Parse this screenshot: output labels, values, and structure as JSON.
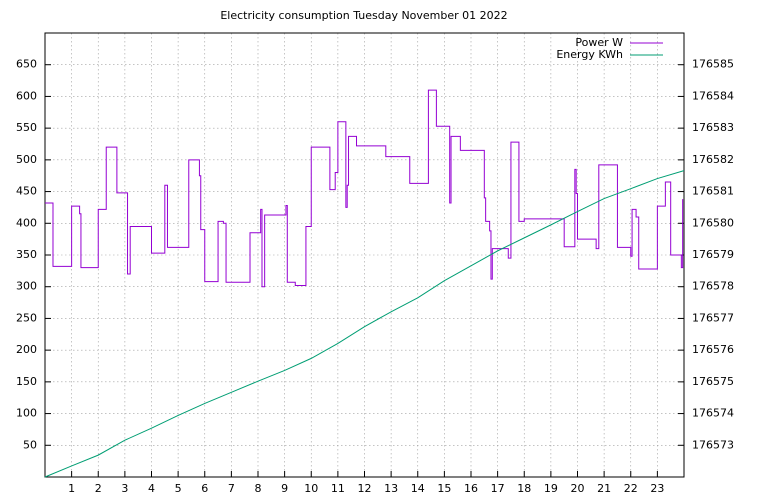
{
  "chart_data": {
    "type": "line",
    "step": "post",
    "title": "Electricity consumption Tuesday November 01 2022",
    "xlim": [
      0,
      24
    ],
    "xticks": [
      1,
      2,
      3,
      4,
      5,
      6,
      7,
      8,
      9,
      10,
      11,
      12,
      13,
      14,
      15,
      16,
      17,
      18,
      19,
      20,
      21,
      22,
      23
    ],
    "ylim": [
      0,
      700
    ],
    "yticks": [
      50,
      100,
      150,
      200,
      250,
      300,
      350,
      400,
      450,
      500,
      550,
      600,
      650
    ],
    "y2lim": [
      176572,
      176586
    ],
    "y2ticks": [
      176573,
      176574,
      176575,
      176576,
      176577,
      176578,
      176579,
      176580,
      176581,
      176582,
      176583,
      176584,
      176585
    ],
    "grid": true,
    "legend": "top-right",
    "series": [
      {
        "name": "Power W",
        "color": "#9400d3",
        "x": [
          0,
          0.3,
          1.0,
          1.3,
          1.35,
          2.0,
          2.3,
          2.7,
          3.1,
          3.2,
          4.0,
          4.5,
          4.6,
          5.4,
          5.8,
          5.85,
          6.0,
          6.5,
          6.7,
          6.8,
          7.7,
          8.1,
          8.15,
          8.25,
          9.05,
          9.1,
          9.4,
          9.8,
          10.0,
          10.7,
          10.9,
          11.0,
          11.3,
          11.35,
          11.4,
          11.7,
          12.8,
          13.7,
          14.4,
          14.7,
          15.2,
          15.25,
          15.6,
          16.5,
          16.55,
          16.7,
          16.75,
          16.8,
          17.4,
          17.5,
          17.8,
          18.0,
          19.5,
          19.9,
          19.95,
          20.0,
          20.7,
          20.8,
          21.5,
          22.0,
          22.05,
          22.2,
          22.3,
          23.0,
          23.3,
          23.5,
          23.9,
          23.95
        ],
        "values": [
          432,
          332,
          427,
          415,
          330,
          422,
          520,
          448,
          320,
          395,
          353,
          460,
          362,
          500,
          475,
          390,
          308,
          403,
          400,
          307,
          385,
          422,
          300,
          413,
          428,
          307,
          302,
          395,
          520,
          453,
          480,
          560,
          425,
          460,
          537,
          522,
          505,
          463,
          610,
          553,
          432,
          537,
          515,
          440,
          403,
          388,
          312,
          360,
          345,
          528,
          403,
          407,
          363,
          485,
          447,
          375,
          360,
          492,
          362,
          348,
          422,
          410,
          328,
          427,
          465,
          350,
          330,
          438
        ]
      },
      {
        "name": "Energy KWh",
        "color": "#009e73",
        "axis": "y2",
        "x": [
          0,
          1,
          2,
          3,
          4,
          5,
          6,
          7,
          8,
          9,
          10,
          11,
          12,
          13,
          14,
          15,
          16,
          17,
          18,
          19,
          20,
          21,
          22,
          23,
          24
        ],
        "values": [
          176572,
          176572.35,
          176572.69,
          176573.16,
          176573.54,
          176573.94,
          176574.32,
          176574.67,
          176575.02,
          176575.36,
          176575.74,
          176576.21,
          176576.74,
          176577.21,
          176577.65,
          176578.19,
          176578.66,
          176579.13,
          176579.54,
          176579.95,
          176580.37,
          176580.78,
          176581.09,
          176581.41,
          176581.66
        ]
      }
    ]
  }
}
